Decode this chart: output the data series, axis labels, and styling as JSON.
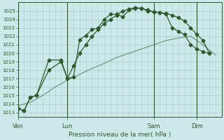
{
  "title": "Pression niveau de la mer( hPa )",
  "bg_color": "#cce8e8",
  "grid_color": "#aacccc",
  "line_color": "#2d5a2d",
  "ylim": [
    1012.5,
    1026.0
  ],
  "yticks": [
    1013,
    1014,
    1015,
    1016,
    1017,
    1018,
    1019,
    1020,
    1021,
    1022,
    1023,
    1024,
    1025
  ],
  "xtick_labels": [
    "Ven",
    "Lun",
    "Sam",
    "Dim"
  ],
  "xtick_positions": [
    0,
    8,
    22,
    29
  ],
  "vline_positions": [
    0,
    8,
    22,
    29
  ],
  "xlim": [
    0,
    33
  ],
  "series1_x": [
    0,
    1,
    2,
    3,
    5,
    7,
    8,
    9,
    10,
    11,
    12,
    13,
    14,
    15,
    16,
    17,
    18,
    19,
    20,
    21,
    22,
    23,
    24,
    25,
    26,
    27,
    28,
    29,
    30,
    31
  ],
  "series1_y": [
    1013.5,
    1013.2,
    1014.8,
    1015.0,
    1019.2,
    1019.2,
    1017.0,
    1017.2,
    1021.6,
    1022.1,
    1022.8,
    1023.0,
    1024.0,
    1024.6,
    1024.6,
    1024.3,
    1025.1,
    1025.3,
    1025.3,
    1025.1,
    1024.9,
    1024.8,
    1024.6,
    1023.0,
    1022.6,
    1022.2,
    1021.0,
    1020.5,
    1020.2,
    1020.0
  ],
  "series2_x": [
    0,
    2,
    4,
    6,
    8,
    10,
    12,
    14,
    16,
    18,
    20,
    22,
    24,
    26,
    28,
    30,
    32
  ],
  "series2_y": [
    1013.8,
    1014.2,
    1015.0,
    1016.0,
    1016.8,
    1017.5,
    1018.2,
    1018.8,
    1019.5,
    1020.0,
    1020.5,
    1021.0,
    1021.5,
    1021.8,
    1022.0,
    1021.0,
    1019.8
  ],
  "series3_x": [
    0,
    1,
    2,
    3,
    5,
    7,
    8,
    9,
    10,
    11,
    12,
    13,
    14,
    15,
    16,
    17,
    18,
    19,
    20,
    21,
    22,
    23,
    24,
    25,
    26,
    27,
    28,
    29,
    30,
    31
  ],
  "series3_y": [
    1013.5,
    1013.2,
    1014.8,
    1015.0,
    1018.0,
    1019.0,
    1017.0,
    1018.5,
    1020.0,
    1021.0,
    1022.0,
    1022.8,
    1023.5,
    1024.0,
    1024.5,
    1025.0,
    1025.2,
    1025.4,
    1025.3,
    1025.0,
    1024.9,
    1024.8,
    1024.7,
    1024.5,
    1024.2,
    1023.8,
    1023.0,
    1022.2,
    1021.5,
    1020.0
  ]
}
